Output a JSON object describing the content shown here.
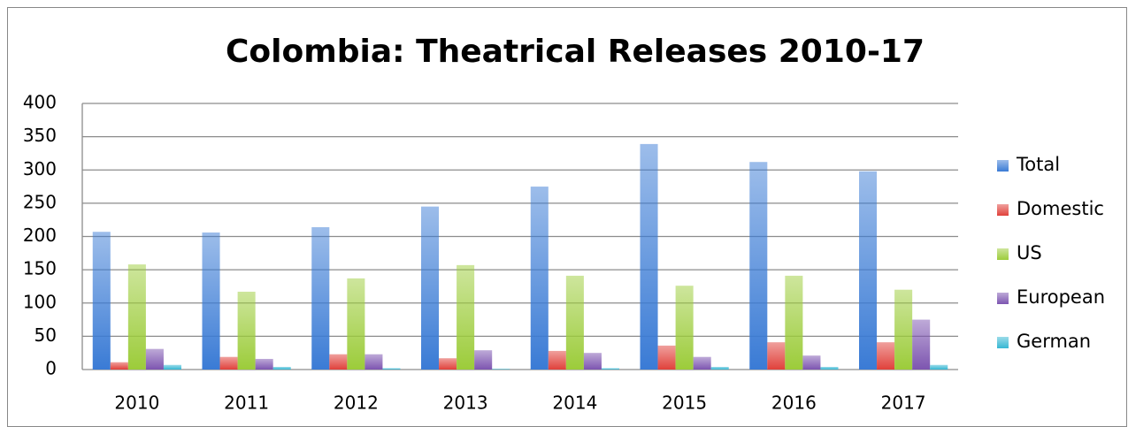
{
  "chart_data": {
    "type": "bar",
    "title": "Colombia: Theatrical Releases 2010-17",
    "categories": [
      "2010",
      "2011",
      "2012",
      "2013",
      "2014",
      "2015",
      "2016",
      "2017"
    ],
    "series": [
      {
        "name": "Total",
        "color": "#3a7bd5",
        "values": [
          207,
          206,
          214,
          245,
          275,
          339,
          312,
          298
        ]
      },
      {
        "name": "Domestic",
        "color": "#e0413b",
        "values": [
          11,
          19,
          23,
          17,
          28,
          36,
          41,
          41
        ]
      },
      {
        "name": "US",
        "color": "#9ccc3a",
        "values": [
          158,
          117,
          137,
          157,
          141,
          126,
          141,
          120
        ]
      },
      {
        "name": "European",
        "color": "#7d55b0",
        "values": [
          31,
          16,
          23,
          29,
          25,
          19,
          21,
          75
        ]
      },
      {
        "name": "German",
        "color": "#36b7d3",
        "values": [
          7,
          4,
          2,
          1,
          2,
          4,
          4,
          7
        ]
      }
    ],
    "ylim": [
      0,
      400
    ],
    "yticks": [
      0,
      50,
      100,
      150,
      200,
      250,
      300,
      350,
      400
    ],
    "grid": true,
    "legend": "right"
  }
}
